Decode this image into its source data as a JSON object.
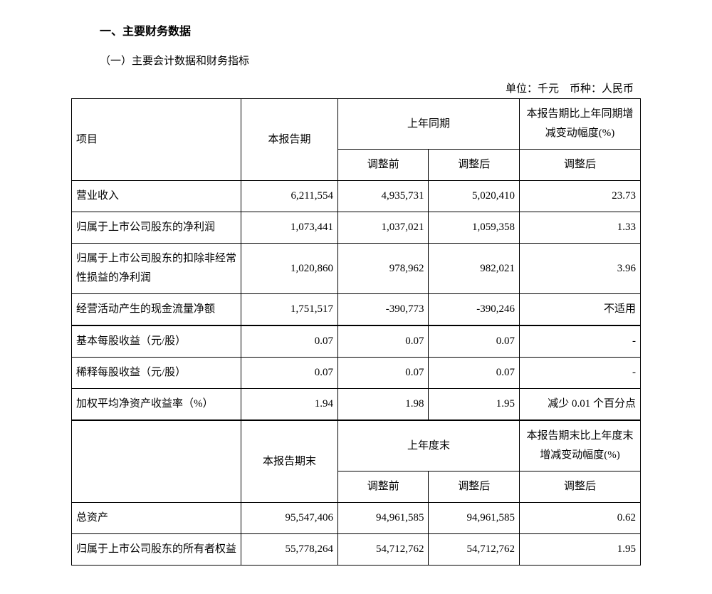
{
  "heading": "一、主要财务数据",
  "subheading": "（一）主要会计数据和财务指标",
  "unit_line": "单位：千元 币种：人民币",
  "header1": {
    "item": "项目",
    "current": "本报告期",
    "prior": "上年同期",
    "change": "本报告期比上年同期增减变动幅度(%)",
    "adj_before": "调整前",
    "adj_after": "调整后",
    "adj_after2": "调整后"
  },
  "rows1": [
    {
      "item": "营业收入",
      "curr": "6,211,554",
      "p1": "4,935,731",
      "p2": "5,020,410",
      "chg": "23.73"
    },
    {
      "item": "归属于上市公司股东的净利润",
      "curr": "1,073,441",
      "p1": "1,037,021",
      "p2": "1,059,358",
      "chg": "1.33"
    },
    {
      "item": "归属于上市公司股东的扣除非经常性损益的净利润",
      "curr": "1,020,860",
      "p1": "978,962",
      "p2": "982,021",
      "chg": "3.96"
    },
    {
      "item": "经营活动产生的现金流量净额",
      "curr": "1,751,517",
      "p1": "-390,773",
      "p2": "-390,246",
      "chg": "不适用"
    }
  ],
  "rows2": [
    {
      "item": "基本每股收益（元/股）",
      "curr": "0.07",
      "p1": "0.07",
      "p2": "0.07",
      "chg": "-"
    },
    {
      "item": "稀释每股收益（元/股）",
      "curr": "0.07",
      "p1": "0.07",
      "p2": "0.07",
      "chg": "-"
    },
    {
      "item": "加权平均净资产收益率（%）",
      "curr": "1.94",
      "p1": "1.98",
      "p2": "1.95",
      "chg": "减少 0.01 个百分点"
    }
  ],
  "header2": {
    "current_end": "本报告期末",
    "prior_end": "上年度末",
    "change_end": "本报告期末比上年度末增减变动幅度(%)",
    "adj_before": "调整前",
    "adj_after": "调整后",
    "adj_after2": "调整后"
  },
  "rows3": [
    {
      "item": "总资产",
      "curr": "95,547,406",
      "p1": "94,961,585",
      "p2": "94,961,585",
      "chg": "0.62"
    },
    {
      "item": "归属于上市公司股东的所有者权益",
      "curr": "55,778,264",
      "p1": "54,712,762",
      "p2": "54,712,762",
      "chg": "1.95"
    }
  ]
}
